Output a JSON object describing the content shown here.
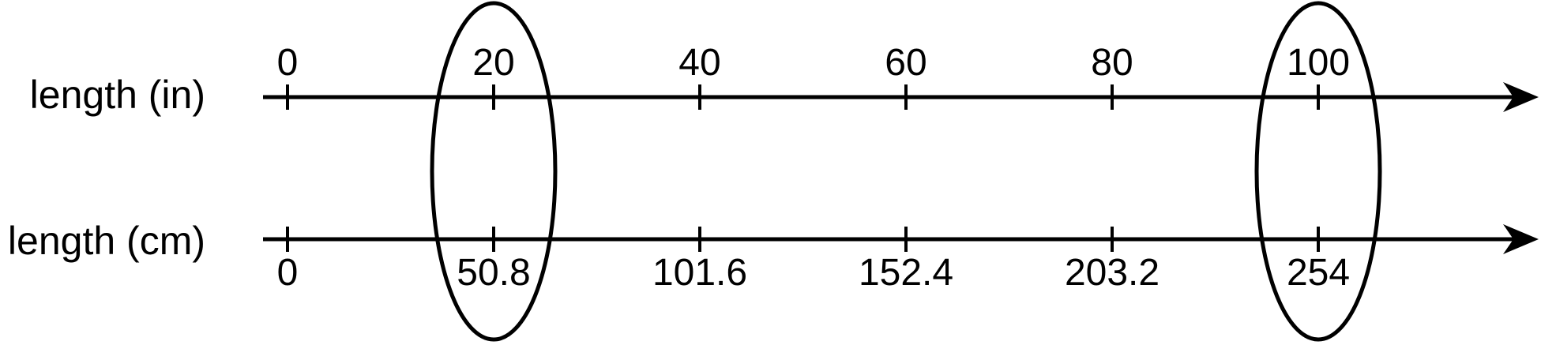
{
  "figure": {
    "rows": [
      {
        "label": "length (in)",
        "tick_labels": [
          "0",
          "20",
          "40",
          "60",
          "80",
          "100"
        ],
        "labels_position": "above"
      },
      {
        "label": "length (cm)",
        "tick_labels": [
          "0",
          "50.8",
          "101.6",
          "152.4",
          "203.2",
          "254"
        ],
        "labels_position": "below"
      }
    ],
    "circled_tick_indices": [
      1,
      5
    ],
    "colors": {
      "background": "#ffffff",
      "line": "#000000",
      "text": "#000000"
    }
  },
  "chart_data": {
    "type": "double_number_line",
    "rows": [
      {
        "label": "length (in)",
        "values": [
          0,
          20,
          40,
          60,
          80,
          100
        ]
      },
      {
        "label": "length (cm)",
        "values": [
          0,
          50.8,
          101.6,
          152.4,
          203.2,
          254
        ]
      }
    ],
    "circled_pairs": [
      {
        "length_in": 20,
        "length_cm": 50.8
      },
      {
        "length_in": 100,
        "length_cm": 254
      }
    ],
    "axis_direction": "right-arrow",
    "grid": false
  }
}
